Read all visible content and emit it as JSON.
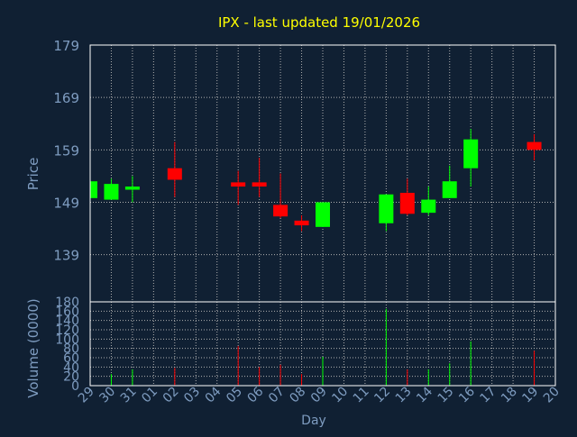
{
  "chart_data": {
    "type": "candlestick",
    "title": "IPX - last updated 19/01/2026",
    "xlabel": "Day",
    "x_ticks": [
      "29",
      "30",
      "31",
      "01",
      "02",
      "03",
      "04",
      "05",
      "06",
      "07",
      "08",
      "09",
      "10",
      "11",
      "12",
      "13",
      "14",
      "15",
      "16",
      "17",
      "18",
      "19",
      "20"
    ],
    "price_panel": {
      "ylabel": "Price",
      "ylim": [
        130,
        179
      ],
      "y_ticks": [
        139,
        149,
        159,
        169,
        179
      ],
      "grid": true
    },
    "volume_panel": {
      "ylabel": "Volume (0000)",
      "ylim": [
        0,
        180
      ],
      "y_ticks": [
        0,
        20,
        40,
        60,
        80,
        100,
        120,
        140,
        160,
        180
      ],
      "grid": true
    },
    "colors": {
      "background": "#102033",
      "plot_border": "#ffffff",
      "grid": "#b0b0b0",
      "title": "#ffff00",
      "axis_text": "#7e9cc0",
      "up": "#00ff00",
      "down": "#ff0000"
    },
    "series": [
      {
        "day": "29",
        "open": 149.8,
        "high": 153.0,
        "low": 149.8,
        "close": 153.0,
        "volume": 3
      },
      {
        "day": "30",
        "open": 149.5,
        "high": 153.5,
        "low": 149.5,
        "close": 152.5,
        "volume": 25
      },
      {
        "day": "31",
        "open": 151.4,
        "high": 154.0,
        "low": 149.0,
        "close": 152.0,
        "volume": 35
      },
      {
        "day": "02",
        "open": 155.5,
        "high": 160.5,
        "low": 150.0,
        "close": 153.3,
        "volume": 38
      },
      {
        "day": "05",
        "open": 152.8,
        "high": 155.0,
        "low": 148.5,
        "close": 152.0,
        "volume": 85
      },
      {
        "day": "06",
        "open": 152.8,
        "high": 157.5,
        "low": 150.0,
        "close": 152.0,
        "volume": 40
      },
      {
        "day": "07",
        "open": 148.5,
        "high": 154.5,
        "low": 146.0,
        "close": 146.3,
        "volume": 45
      },
      {
        "day": "08",
        "open": 145.5,
        "high": 146.5,
        "low": 143.5,
        "close": 144.6,
        "volume": 25
      },
      {
        "day": "09",
        "open": 144.3,
        "high": 149.0,
        "low": 144.3,
        "close": 149.0,
        "volume": 62
      },
      {
        "day": "12",
        "open": 145.0,
        "high": 150.5,
        "low": 143.5,
        "close": 150.5,
        "volume": 165
      },
      {
        "day": "13",
        "open": 150.8,
        "high": 153.5,
        "low": 146.5,
        "close": 146.8,
        "volume": 35
      },
      {
        "day": "14",
        "open": 147.0,
        "high": 152.0,
        "low": 146.5,
        "close": 149.5,
        "volume": 35
      },
      {
        "day": "15",
        "open": 149.8,
        "high": 156.0,
        "low": 149.8,
        "close": 153.0,
        "volume": 48
      },
      {
        "day": "16",
        "open": 155.5,
        "high": 163.0,
        "low": 152.0,
        "close": 161.0,
        "volume": 95
      },
      {
        "day": "19",
        "open": 160.5,
        "high": 162.0,
        "low": 157.0,
        "close": 159.0,
        "volume": 75
      }
    ]
  }
}
